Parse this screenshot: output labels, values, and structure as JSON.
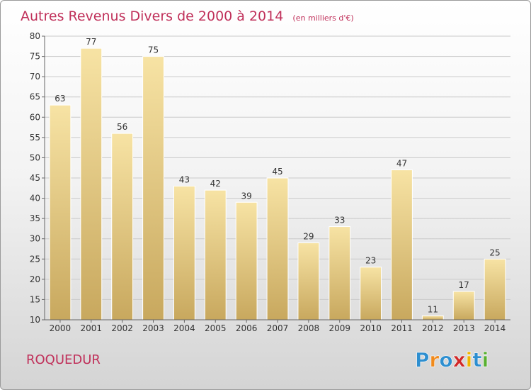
{
  "chart_data": {
    "type": "bar",
    "title": "Autres Revenus Divers de 2000 à 2014",
    "subtitle": "(en milliers d'€)",
    "categories": [
      "2000",
      "2001",
      "2002",
      "2003",
      "2004",
      "2005",
      "2006",
      "2007",
      "2008",
      "2009",
      "2010",
      "2011",
      "2012",
      "2013",
      "2014"
    ],
    "values": [
      63,
      77,
      56,
      75,
      43,
      42,
      39,
      45,
      29,
      33,
      23,
      47,
      11,
      17,
      25
    ],
    "ylim": [
      10,
      80
    ],
    "yticks": [
      10,
      15,
      20,
      25,
      30,
      35,
      40,
      45,
      50,
      55,
      60,
      65,
      70,
      75,
      80
    ],
    "grid": true,
    "bar_color": "#e9cd84"
  },
  "footer": {
    "commune": "ROQUEDUR",
    "logo_letters": [
      "P",
      "r",
      "o",
      "x",
      "i",
      "t",
      "i"
    ],
    "logo_colors": [
      "#2e8fd0",
      "#f08a1c",
      "#2e8fd0",
      "#d02828",
      "#f0b400",
      "#2e8fd0",
      "#58b030"
    ]
  }
}
